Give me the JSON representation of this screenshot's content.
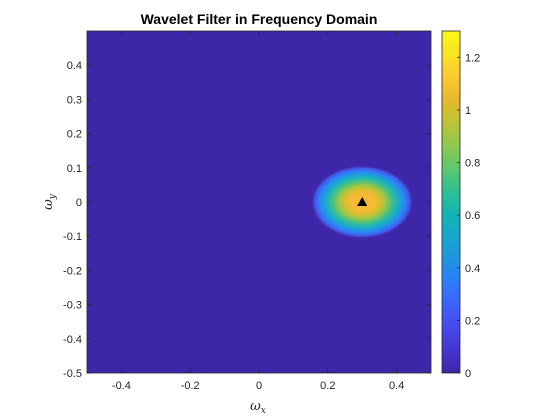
{
  "chart_data": {
    "type": "heatmap",
    "title": "Wavelet Filter in Frequency Domain",
    "xlabel": "ωx",
    "xlabel_main": "ω",
    "xlabel_sub": "x",
    "ylabel": "ωy",
    "ylabel_main": "ω",
    "ylabel_sub": "y",
    "xlim": [
      -0.5,
      0.5
    ],
    "ylim": [
      -0.5,
      0.5
    ],
    "x_ticks": [
      -0.4,
      -0.2,
      0,
      0.2,
      0.4
    ],
    "x_tick_labels": [
      "-0.4",
      "-0.2",
      "0",
      "0.2",
      "0.4"
    ],
    "y_ticks": [
      0.4,
      0.3,
      0.2,
      0.1,
      0,
      -0.1,
      -0.2,
      -0.3,
      -0.4,
      -0.5
    ],
    "y_tick_labels": [
      "0.4",
      "0.3",
      "0.2",
      "0.1",
      "0",
      "-0.1",
      "-0.2",
      "-0.3",
      "-0.4",
      "-0.5"
    ],
    "colormap": "parula",
    "background_color": "#3e26a8",
    "clim": [
      0,
      1.3
    ],
    "colorbar_ticks": [
      1.2,
      1,
      0.8,
      0.6,
      0.4,
      0.2,
      0
    ],
    "colorbar_tick_labels": [
      "1.2",
      "1",
      "0.8",
      "0.6",
      "0.4",
      "0.2",
      "0"
    ],
    "peak": {
      "x": 0.3,
      "y": 0,
      "value": 1.3
    },
    "blob_sigma": {
      "x": 0.05,
      "y": 0.036
    },
    "marker": {
      "x": 0.3,
      "y": 0,
      "shape": "triangle-up",
      "color": "#000000"
    },
    "grid": false,
    "colorbar_location": "right"
  }
}
